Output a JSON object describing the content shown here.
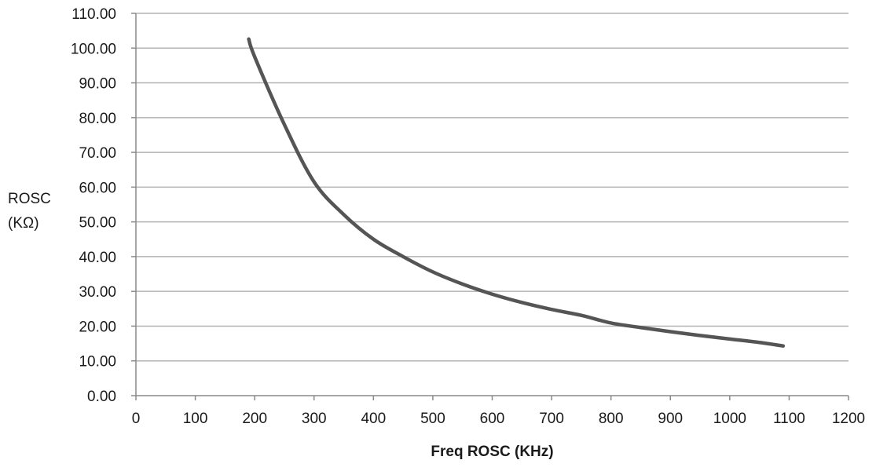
{
  "chart_data": {
    "type": "line",
    "title": "",
    "xlabel": "Freq ROSC (KHz)",
    "ylabel_lines": [
      "ROSC",
      "(KΩ)"
    ],
    "xlim": [
      0,
      1200
    ],
    "ylim": [
      0,
      110
    ],
    "x_ticks": [
      "0",
      "100",
      "200",
      "300",
      "400",
      "500",
      "600",
      "700",
      "800",
      "900",
      "1000",
      "1100",
      "1200"
    ],
    "y_ticks": [
      "0.00",
      "10.00",
      "20.00",
      "30.00",
      "40.00",
      "50.00",
      "60.00",
      "70.00",
      "80.00",
      "90.00",
      "100.00",
      "110.00"
    ],
    "grid": "horizontal",
    "legend": "none",
    "series": [
      {
        "color": "#555555",
        "x": [
          190,
          200,
          250,
          300,
          350,
          400,
          450,
          500,
          550,
          600,
          650,
          700,
          750,
          800,
          850,
          900,
          950,
          1000,
          1050,
          1090
        ],
        "y": [
          102.6,
          97.5,
          78.0,
          61.5,
          52.1,
          45.0,
          40.0,
          35.6,
          32.1,
          29.2,
          26.8,
          24.8,
          23.1,
          20.9,
          19.6,
          18.4,
          17.3,
          16.3,
          15.3,
          14.3
        ]
      }
    ]
  }
}
